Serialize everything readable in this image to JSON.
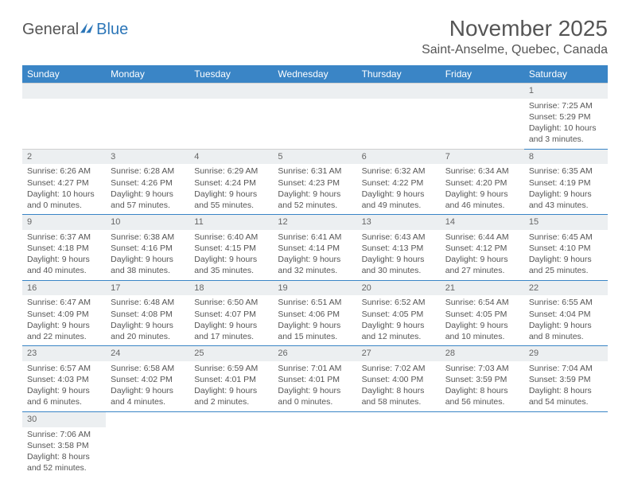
{
  "logo": {
    "general": "General",
    "blue": "Blue"
  },
  "title": "November 2025",
  "location": "Saint-Anselme, Quebec, Canada",
  "colors": {
    "header_bg": "#3a85c6",
    "header_text": "#ffffff",
    "daynum_bg": "#eceff1",
    "row_border": "#3a85c6",
    "text": "#555555",
    "logo_blue": "#2c76b8"
  },
  "day_headers": [
    "Sunday",
    "Monday",
    "Tuesday",
    "Wednesday",
    "Thursday",
    "Friday",
    "Saturday"
  ],
  "weeks": [
    [
      null,
      null,
      null,
      null,
      null,
      null,
      {
        "n": "1",
        "sr": "Sunrise: 7:25 AM",
        "ss": "Sunset: 5:29 PM",
        "d1": "Daylight: 10 hours",
        "d2": "and 3 minutes."
      }
    ],
    [
      {
        "n": "2",
        "sr": "Sunrise: 6:26 AM",
        "ss": "Sunset: 4:27 PM",
        "d1": "Daylight: 10 hours",
        "d2": "and 0 minutes."
      },
      {
        "n": "3",
        "sr": "Sunrise: 6:28 AM",
        "ss": "Sunset: 4:26 PM",
        "d1": "Daylight: 9 hours",
        "d2": "and 57 minutes."
      },
      {
        "n": "4",
        "sr": "Sunrise: 6:29 AM",
        "ss": "Sunset: 4:24 PM",
        "d1": "Daylight: 9 hours",
        "d2": "and 55 minutes."
      },
      {
        "n": "5",
        "sr": "Sunrise: 6:31 AM",
        "ss": "Sunset: 4:23 PM",
        "d1": "Daylight: 9 hours",
        "d2": "and 52 minutes."
      },
      {
        "n": "6",
        "sr": "Sunrise: 6:32 AM",
        "ss": "Sunset: 4:22 PM",
        "d1": "Daylight: 9 hours",
        "d2": "and 49 minutes."
      },
      {
        "n": "7",
        "sr": "Sunrise: 6:34 AM",
        "ss": "Sunset: 4:20 PM",
        "d1": "Daylight: 9 hours",
        "d2": "and 46 minutes."
      },
      {
        "n": "8",
        "sr": "Sunrise: 6:35 AM",
        "ss": "Sunset: 4:19 PM",
        "d1": "Daylight: 9 hours",
        "d2": "and 43 minutes."
      }
    ],
    [
      {
        "n": "9",
        "sr": "Sunrise: 6:37 AM",
        "ss": "Sunset: 4:18 PM",
        "d1": "Daylight: 9 hours",
        "d2": "and 40 minutes."
      },
      {
        "n": "10",
        "sr": "Sunrise: 6:38 AM",
        "ss": "Sunset: 4:16 PM",
        "d1": "Daylight: 9 hours",
        "d2": "and 38 minutes."
      },
      {
        "n": "11",
        "sr": "Sunrise: 6:40 AM",
        "ss": "Sunset: 4:15 PM",
        "d1": "Daylight: 9 hours",
        "d2": "and 35 minutes."
      },
      {
        "n": "12",
        "sr": "Sunrise: 6:41 AM",
        "ss": "Sunset: 4:14 PM",
        "d1": "Daylight: 9 hours",
        "d2": "and 32 minutes."
      },
      {
        "n": "13",
        "sr": "Sunrise: 6:43 AM",
        "ss": "Sunset: 4:13 PM",
        "d1": "Daylight: 9 hours",
        "d2": "and 30 minutes."
      },
      {
        "n": "14",
        "sr": "Sunrise: 6:44 AM",
        "ss": "Sunset: 4:12 PM",
        "d1": "Daylight: 9 hours",
        "d2": "and 27 minutes."
      },
      {
        "n": "15",
        "sr": "Sunrise: 6:45 AM",
        "ss": "Sunset: 4:10 PM",
        "d1": "Daylight: 9 hours",
        "d2": "and 25 minutes."
      }
    ],
    [
      {
        "n": "16",
        "sr": "Sunrise: 6:47 AM",
        "ss": "Sunset: 4:09 PM",
        "d1": "Daylight: 9 hours",
        "d2": "and 22 minutes."
      },
      {
        "n": "17",
        "sr": "Sunrise: 6:48 AM",
        "ss": "Sunset: 4:08 PM",
        "d1": "Daylight: 9 hours",
        "d2": "and 20 minutes."
      },
      {
        "n": "18",
        "sr": "Sunrise: 6:50 AM",
        "ss": "Sunset: 4:07 PM",
        "d1": "Daylight: 9 hours",
        "d2": "and 17 minutes."
      },
      {
        "n": "19",
        "sr": "Sunrise: 6:51 AM",
        "ss": "Sunset: 4:06 PM",
        "d1": "Daylight: 9 hours",
        "d2": "and 15 minutes."
      },
      {
        "n": "20",
        "sr": "Sunrise: 6:52 AM",
        "ss": "Sunset: 4:05 PM",
        "d1": "Daylight: 9 hours",
        "d2": "and 12 minutes."
      },
      {
        "n": "21",
        "sr": "Sunrise: 6:54 AM",
        "ss": "Sunset: 4:05 PM",
        "d1": "Daylight: 9 hours",
        "d2": "and 10 minutes."
      },
      {
        "n": "22",
        "sr": "Sunrise: 6:55 AM",
        "ss": "Sunset: 4:04 PM",
        "d1": "Daylight: 9 hours",
        "d2": "and 8 minutes."
      }
    ],
    [
      {
        "n": "23",
        "sr": "Sunrise: 6:57 AM",
        "ss": "Sunset: 4:03 PM",
        "d1": "Daylight: 9 hours",
        "d2": "and 6 minutes."
      },
      {
        "n": "24",
        "sr": "Sunrise: 6:58 AM",
        "ss": "Sunset: 4:02 PM",
        "d1": "Daylight: 9 hours",
        "d2": "and 4 minutes."
      },
      {
        "n": "25",
        "sr": "Sunrise: 6:59 AM",
        "ss": "Sunset: 4:01 PM",
        "d1": "Daylight: 9 hours",
        "d2": "and 2 minutes."
      },
      {
        "n": "26",
        "sr": "Sunrise: 7:01 AM",
        "ss": "Sunset: 4:01 PM",
        "d1": "Daylight: 9 hours",
        "d2": "and 0 minutes."
      },
      {
        "n": "27",
        "sr": "Sunrise: 7:02 AM",
        "ss": "Sunset: 4:00 PM",
        "d1": "Daylight: 8 hours",
        "d2": "and 58 minutes."
      },
      {
        "n": "28",
        "sr": "Sunrise: 7:03 AM",
        "ss": "Sunset: 3:59 PM",
        "d1": "Daylight: 8 hours",
        "d2": "and 56 minutes."
      },
      {
        "n": "29",
        "sr": "Sunrise: 7:04 AM",
        "ss": "Sunset: 3:59 PM",
        "d1": "Daylight: 8 hours",
        "d2": "and 54 minutes."
      }
    ],
    [
      {
        "n": "30",
        "sr": "Sunrise: 7:06 AM",
        "ss": "Sunset: 3:58 PM",
        "d1": "Daylight: 8 hours",
        "d2": "and 52 minutes."
      },
      null,
      null,
      null,
      null,
      null,
      null
    ]
  ]
}
